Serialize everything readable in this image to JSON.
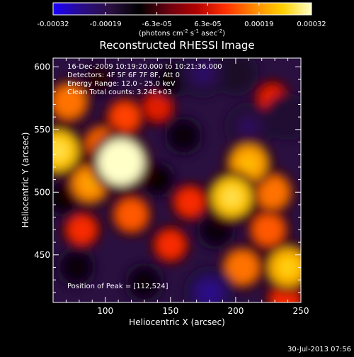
{
  "colorbar": {
    "tick_labels": [
      "-0.00032",
      "-0.00019",
      "-6.3e-05",
      "6.3e-05",
      "0.00019",
      "0.00032"
    ],
    "tick_values": [
      -0.00032,
      -0.00019,
      -6.3e-05,
      6.3e-05,
      0.00019,
      0.00032
    ],
    "range": [
      -0.00032,
      0.00032
    ],
    "unit_label": "(photons cm",
    "unit_exp1": "-2",
    "unit_mid": " s",
    "unit_exp2": "-1",
    "unit_tail": " asec",
    "unit_exp3": "-2",
    "unit_close": ")"
  },
  "header": {
    "title": "Reconstructed RHESSI Image",
    "info_lines": [
      "16-Dec-2009 10:19:20.000 to 10:21:36.000",
      "Detectors: 4F 5F 6F 7F 8F, Att 0",
      "Energy Range: 12.0 - 25.0 keV",
      "Clean    Total counts: 3.24E+03"
    ],
    "peak_text": "Position of Peak = [112,524]"
  },
  "footer": {
    "timestamp": "30-Jul-2013 07:56"
  },
  "colors": {
    "background": "#000000",
    "text": "#ffffff",
    "colormap": [
      "#1a00ff",
      "#2a0c88",
      "#2a1040",
      "#000000",
      "#6a0010",
      "#b10000",
      "#ff3000",
      "#ff8800",
      "#ffd000",
      "#ffffc8"
    ]
  },
  "chart_data": {
    "type": "heatmap",
    "title": "Reconstructed RHESSI Image",
    "xlabel": "Heliocentric X (arcsec)",
    "ylabel": "Heliocentric Y (arcsec)",
    "xlim": [
      60,
      250
    ],
    "ylim": [
      412,
      607
    ],
    "x_ticks": [
      100,
      150,
      200,
      250
    ],
    "y_ticks": [
      450,
      500,
      550,
      600
    ],
    "peak": [
      112,
      524
    ],
    "value_range": [
      -0.00032,
      0.00032
    ],
    "blobs": [
      {
        "x": 112,
        "y": 524,
        "value": 0.00032
      },
      {
        "x": 98,
        "y": 538,
        "value": 0.00015
      },
      {
        "x": 88,
        "y": 507,
        "value": 0.00018
      },
      {
        "x": 64,
        "y": 533,
        "value": 0.00024
      },
      {
        "x": 72,
        "y": 572,
        "value": 0.00016
      },
      {
        "x": 115,
        "y": 560,
        "value": 0.00012
      },
      {
        "x": 140,
        "y": 568,
        "value": 8e-05
      },
      {
        "x": 82,
        "y": 470,
        "value": 0.0001
      },
      {
        "x": 120,
        "y": 482,
        "value": 0.00014
      },
      {
        "x": 150,
        "y": 458,
        "value": 0.0001
      },
      {
        "x": 165,
        "y": 492,
        "value": 0.0001
      },
      {
        "x": 210,
        "y": 523,
        "value": 0.0002
      },
      {
        "x": 228,
        "y": 500,
        "value": 0.00016
      },
      {
        "x": 197,
        "y": 496,
        "value": 0.00024
      },
      {
        "x": 240,
        "y": 440,
        "value": 0.00022
      },
      {
        "x": 205,
        "y": 440,
        "value": 0.00016
      },
      {
        "x": 225,
        "y": 470,
        "value": 0.00014
      },
      {
        "x": 228,
        "y": 575,
        "value": 8e-05
      },
      {
        "x": 238,
        "y": 415,
        "value": 0.0001
      },
      {
        "x": 175,
        "y": 595,
        "value": -0.00019
      },
      {
        "x": 200,
        "y": 595,
        "value": -0.00015
      },
      {
        "x": 160,
        "y": 545,
        "value": -0.00012
      },
      {
        "x": 210,
        "y": 552,
        "value": -0.00018
      },
      {
        "x": 240,
        "y": 560,
        "value": -0.00016
      },
      {
        "x": 140,
        "y": 510,
        "value": -0.0001
      },
      {
        "x": 180,
        "y": 420,
        "value": -0.00022
      },
      {
        "x": 130,
        "y": 428,
        "value": -0.00012
      },
      {
        "x": 68,
        "y": 495,
        "value": -0.0001
      },
      {
        "x": 78,
        "y": 440,
        "value": -0.00012
      },
      {
        "x": 185,
        "y": 470,
        "value": -0.00012
      },
      {
        "x": 150,
        "y": 590,
        "value": -0.0001
      },
      {
        "x": 95,
        "y": 590,
        "value": -8e-05
      }
    ]
  }
}
